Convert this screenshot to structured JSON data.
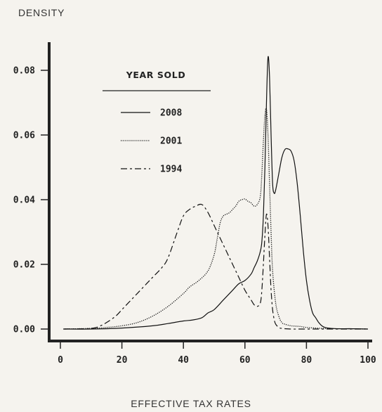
{
  "chart_data": {
    "type": "line",
    "ylabel": "DENSITY",
    "xlabel": "EFFECTIVE TAX RATES",
    "xlim": [
      0,
      100
    ],
    "ylim": [
      0,
      0.085
    ],
    "x_ticks": [
      "0",
      "20",
      "40",
      "60",
      "80",
      "100"
    ],
    "y_ticks": [
      "0.00",
      "0.02",
      "0.04",
      "0.06",
      "0.08"
    ],
    "grid": false,
    "legend": {
      "title": "YEAR SOLD",
      "placement": "top-left"
    },
    "series": [
      {
        "name": "2008",
        "style": "solid",
        "x": [
          1,
          10,
          20,
          30,
          35,
          40,
          43,
          46,
          48,
          50,
          53,
          56,
          58,
          60,
          62,
          63,
          64,
          65,
          65.5,
          66,
          66.5,
          67,
          67.5,
          68,
          68.5,
          69,
          69.5,
          70,
          71,
          72,
          73,
          74,
          75,
          76,
          77,
          78,
          79,
          80,
          81,
          82,
          83,
          84,
          85,
          86,
          88,
          90,
          95,
          100
        ],
        "y": [
          0.0,
          0.0,
          0.0003,
          0.001,
          0.0017,
          0.0025,
          0.0028,
          0.0035,
          0.005,
          0.006,
          0.009,
          0.012,
          0.014,
          0.015,
          0.017,
          0.019,
          0.021,
          0.024,
          0.027,
          0.035,
          0.05,
          0.07,
          0.084,
          0.078,
          0.06,
          0.045,
          0.042,
          0.043,
          0.048,
          0.053,
          0.0555,
          0.0557,
          0.055,
          0.052,
          0.045,
          0.035,
          0.024,
          0.015,
          0.009,
          0.005,
          0.0035,
          0.002,
          0.001,
          0.0005,
          0.0002,
          0.0001,
          0.0001,
          0.0
        ]
      },
      {
        "name": "2001",
        "style": "dotted",
        "x": [
          1,
          10,
          15,
          20,
          25,
          30,
          35,
          40,
          42,
          45,
          48,
          50,
          51,
          52,
          53,
          54,
          55,
          56,
          57,
          58,
          59,
          60,
          61,
          62,
          63,
          64,
          65,
          65.5,
          66,
          66.5,
          67,
          67.5,
          68,
          68.5,
          69,
          70,
          71,
          72,
          73,
          75,
          78,
          80,
          85,
          90,
          100
        ],
        "y": [
          0.0,
          0.0002,
          0.0005,
          0.001,
          0.002,
          0.004,
          0.007,
          0.011,
          0.013,
          0.015,
          0.018,
          0.023,
          0.028,
          0.033,
          0.035,
          0.0355,
          0.036,
          0.037,
          0.038,
          0.0395,
          0.04,
          0.0402,
          0.0395,
          0.039,
          0.038,
          0.0385,
          0.041,
          0.048,
          0.058,
          0.066,
          0.068,
          0.06,
          0.045,
          0.03,
          0.018,
          0.008,
          0.004,
          0.002,
          0.0015,
          0.001,
          0.0008,
          0.0005,
          0.0002,
          0.0001,
          0.0
        ]
      },
      {
        "name": "1994",
        "style": "dashed",
        "x": [
          1,
          10,
          13,
          15,
          18,
          20,
          22,
          25,
          28,
          30,
          33,
          35,
          38,
          40,
          42,
          44,
          46,
          48,
          50,
          52,
          55,
          58,
          60,
          62,
          63,
          64,
          65,
          65.5,
          66,
          66.5,
          67,
          67.5,
          68,
          68.5,
          69,
          69.5,
          70,
          71,
          72,
          75,
          80,
          100
        ],
        "y": [
          0.0,
          0.0002,
          0.001,
          0.002,
          0.004,
          0.006,
          0.008,
          0.011,
          0.014,
          0.016,
          0.019,
          0.022,
          0.03,
          0.035,
          0.037,
          0.038,
          0.0385,
          0.036,
          0.032,
          0.028,
          0.022,
          0.016,
          0.012,
          0.009,
          0.0075,
          0.007,
          0.008,
          0.012,
          0.02,
          0.029,
          0.0355,
          0.032,
          0.022,
          0.012,
          0.006,
          0.003,
          0.0015,
          0.0005,
          0.0002,
          0.0,
          0.0,
          0.0
        ]
      }
    ]
  }
}
